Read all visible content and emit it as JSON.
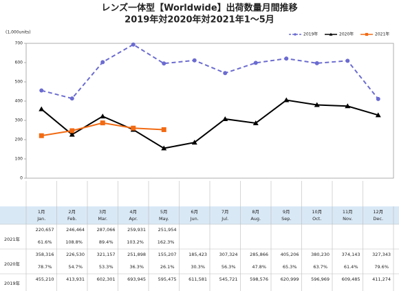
{
  "chart_data": {
    "type": "line",
    "title": "レンズ一体型【Worldwide】出荷数量月間推移",
    "subtitle": "2019年対2020年対2021年1～5月",
    "y_unit": "(1,000units)",
    "categories": [
      "1月",
      "2月",
      "3月",
      "4月",
      "5月",
      "6月",
      "7月",
      "8月",
      "9月",
      "10月",
      "11月",
      "12月"
    ],
    "categories_en": [
      "Jan.",
      "Feb.",
      "Mar.",
      "Apr.",
      "May.",
      "Jun.",
      "Jul.",
      "Aug.",
      "Sep.",
      "Oct.",
      "Nov.",
      "Dec."
    ],
    "ylim": [
      0,
      700
    ],
    "yticks": [
      0,
      100,
      200,
      300,
      400,
      500,
      600,
      700
    ],
    "legend": "top-right",
    "series": [
      {
        "name": "2019年",
        "color": "#6b6bd1",
        "dash": true,
        "marker": "circle",
        "values": [
          455.21,
          413.931,
          602.301,
          693.945,
          595.475,
          611.581,
          545.721,
          598.576,
          620.999,
          596.969,
          609.485,
          411.274
        ],
        "value_labels": [
          "455,210",
          "413,931",
          "602,301",
          "693,945",
          "595,475",
          "611,581",
          "545,721",
          "598,576",
          "620,999",
          "596,969",
          "609,485",
          "411,274"
        ]
      },
      {
        "name": "2020年",
        "color": "#000000",
        "dash": false,
        "marker": "triangle",
        "values": [
          358.316,
          226.53,
          321.157,
          251.898,
          155.207,
          185.423,
          307.324,
          285.866,
          405.206,
          380.23,
          374.143,
          327.343
        ],
        "value_labels": [
          "358,316",
          "226,530",
          "321,157",
          "251,898",
          "155,207",
          "185,423",
          "307,324",
          "285,866",
          "405,206",
          "380,230",
          "374,143",
          "327,343"
        ],
        "ratio_labels": [
          "78.7%",
          "54.7%",
          "53.3%",
          "36.3%",
          "26.1%",
          "30.3%",
          "56.3%",
          "47.8%",
          "65.3%",
          "63.7%",
          "61.4%",
          "79.6%"
        ]
      },
      {
        "name": "2021年",
        "color": "#f26a12",
        "dash": false,
        "marker": "square",
        "values": [
          220.657,
          246.464,
          287.066,
          259.931,
          251.954,
          null,
          null,
          null,
          null,
          null,
          null,
          null
        ],
        "value_labels": [
          "220,657",
          "246,464",
          "287,066",
          "259,931",
          "251,954",
          null,
          null,
          null,
          null,
          null,
          null,
          null
        ],
        "ratio_labels": [
          "61.6%",
          "108.8%",
          "89.4%",
          "103.2%",
          "162.3%",
          null,
          null,
          null,
          null,
          null,
          null,
          null
        ]
      }
    ]
  }
}
